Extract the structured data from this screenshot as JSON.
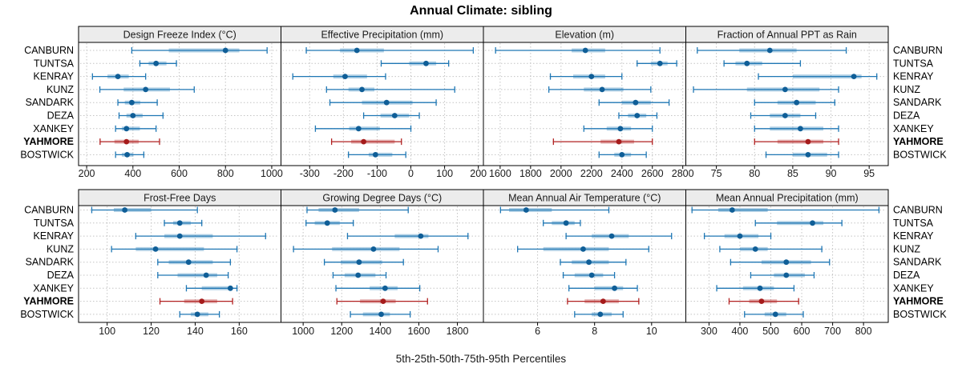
{
  "title": "Annual Climate: sibling",
  "caption": "5th-25th-50th-75th-95th Percentiles",
  "stations": [
    "CANBURN",
    "TUNTSA",
    "KENRAY",
    "KUNZ",
    "SANDARK",
    "DEZA",
    "XANKEY",
    "YAHMORE",
    "BOSTWICK"
  ],
  "highlight_station": "YAHMORE",
  "colors": {
    "blue_line": "#1f77b4",
    "blue_band": "rgba(31,119,180,0.35)",
    "blue_dot": "#0f5e97",
    "red_line": "#b22222",
    "red_band": "rgba(178,34,34,0.35)",
    "red_dot": "#a51b1b",
    "strip_bg": "#ececec",
    "grid": "#c4c4c4",
    "border": "#000000",
    "text": "#1a1a1a"
  },
  "chart_data": {
    "type": "dotplot-percentiles",
    "percentiles": [
      5,
      25,
      50,
      75,
      95
    ],
    "layout": {
      "rows": 2,
      "cols": 4,
      "grid": "dotted",
      "station_axis": "y"
    },
    "panels": [
      {
        "row": 0,
        "col": 0,
        "title": "Design Freeze Index (°C)",
        "xlim": [
          165,
          1040
        ],
        "ticks": [
          200,
          400,
          600,
          800,
          1000
        ],
        "values": [
          [
            395,
            555,
            800,
            860,
            980
          ],
          [
            430,
            468,
            500,
            545,
            588
          ],
          [
            225,
            290,
            335,
            382,
            455
          ],
          [
            257,
            360,
            455,
            560,
            665
          ],
          [
            335,
            365,
            395,
            432,
            505
          ],
          [
            340,
            372,
            400,
            442,
            530
          ],
          [
            325,
            352,
            372,
            430,
            500
          ],
          [
            258,
            320,
            372,
            425,
            515
          ],
          [
            325,
            352,
            375,
            402,
            447
          ]
        ]
      },
      {
        "row": 0,
        "col": 1,
        "title": "Effective Precipitation (mm)",
        "xlim": [
          -385,
          215
        ],
        "ticks": [
          -300,
          -200,
          -100,
          0,
          100,
          200
        ],
        "values": [
          [
            -310,
            -210,
            -160,
            -80,
            185
          ],
          [
            -88,
            -5,
            45,
            75,
            112
          ],
          [
            -350,
            -230,
            -195,
            -130,
            -75
          ],
          [
            -250,
            -185,
            -145,
            -108,
            130
          ],
          [
            -240,
            -145,
            -72,
            5,
            75
          ],
          [
            -140,
            -90,
            -48,
            -5,
            25
          ],
          [
            -283,
            -183,
            -155,
            -92,
            0
          ],
          [
            -235,
            -177,
            -140,
            -48,
            -28
          ],
          [
            -185,
            -125,
            -105,
            -55,
            -15
          ]
        ]
      },
      {
        "row": 0,
        "col": 2,
        "title": "Elevation (m)",
        "xlim": [
          1490,
          2820
        ],
        "ticks": [
          1600,
          1800,
          2000,
          2200,
          2400,
          2600,
          2800
        ],
        "values": [
          [
            1570,
            2070,
            2160,
            2290,
            2650
          ],
          [
            2500,
            2590,
            2650,
            2700,
            2760
          ],
          [
            1930,
            2080,
            2200,
            2290,
            2400
          ],
          [
            1920,
            2150,
            2270,
            2410,
            2590
          ],
          [
            2250,
            2400,
            2490,
            2590,
            2710
          ],
          [
            2380,
            2440,
            2500,
            2560,
            2630
          ],
          [
            2150,
            2300,
            2390,
            2460,
            2600
          ],
          [
            1950,
            2260,
            2380,
            2480,
            2600
          ],
          [
            2250,
            2350,
            2400,
            2460,
            2560
          ]
        ]
      },
      {
        "row": 0,
        "col": 3,
        "title": "Fraction of Annual PPT as Rain",
        "xlim": [
          71,
          97.5
        ],
        "ticks": [
          75,
          80,
          85,
          90,
          95
        ],
        "values": [
          [
            72.5,
            78,
            82,
            85.5,
            92
          ],
          [
            76,
            77.5,
            79,
            81,
            86
          ],
          [
            80.5,
            85,
            93,
            94,
            96
          ],
          [
            72,
            79,
            84,
            88.5,
            91
          ],
          [
            80,
            83,
            85.5,
            88,
            90.5
          ],
          [
            79.5,
            82,
            84,
            86,
            88
          ],
          [
            80,
            82,
            86,
            89,
            91
          ],
          [
            80,
            83,
            87,
            89,
            91
          ],
          [
            81.5,
            85,
            87,
            89.5,
            91
          ]
        ]
      },
      {
        "row": 1,
        "col": 0,
        "title": "Frost-Free Days",
        "xlim": [
          87,
          179
        ],
        "ticks": [
          100,
          120,
          140,
          160
        ],
        "values": [
          [
            93,
            103,
            108,
            120,
            141
          ],
          [
            126,
            130,
            133,
            138,
            143
          ],
          [
            113,
            126,
            133,
            148,
            172
          ],
          [
            102,
            113,
            122,
            144,
            159
          ],
          [
            123,
            128,
            137,
            148,
            156
          ],
          [
            123,
            132,
            145,
            150,
            155
          ],
          [
            136,
            143,
            156,
            157,
            159
          ],
          [
            124,
            135,
            143,
            150,
            157
          ],
          [
            133,
            138,
            141,
            146,
            151
          ]
        ]
      },
      {
        "row": 1,
        "col": 1,
        "title": "Growing Degree Days (°C)",
        "xlim": [
          885,
          1935
        ],
        "ticks": [
          1000,
          1200,
          1400,
          1600,
          1800
        ],
        "values": [
          [
            1020,
            1080,
            1165,
            1290,
            1545
          ],
          [
            1015,
            1060,
            1125,
            1190,
            1260
          ],
          [
            1230,
            1475,
            1610,
            1650,
            1855
          ],
          [
            950,
            1150,
            1365,
            1500,
            1700
          ],
          [
            1110,
            1195,
            1290,
            1410,
            1520
          ],
          [
            1155,
            1215,
            1285,
            1375,
            1430
          ],
          [
            1170,
            1345,
            1425,
            1490,
            1605
          ],
          [
            1175,
            1295,
            1415,
            1480,
            1645
          ],
          [
            1245,
            1310,
            1405,
            1450,
            1555
          ]
        ]
      },
      {
        "row": 1,
        "col": 2,
        "title": "Mean Annual Air Temperature (°C)",
        "xlim": [
          4.1,
          11.2
        ],
        "ticks": [
          6,
          8,
          10
        ],
        "values": [
          [
            4.7,
            5.0,
            5.6,
            6.5,
            8.5
          ],
          [
            6.2,
            6.5,
            7.0,
            7.3,
            7.5
          ],
          [
            7.0,
            7.9,
            8.6,
            9.2,
            10.7
          ],
          [
            5.3,
            6.2,
            7.6,
            8.5,
            9.9
          ],
          [
            6.8,
            7.2,
            7.8,
            8.5,
            9.1
          ],
          [
            6.9,
            7.3,
            7.9,
            8.3,
            8.7
          ],
          [
            7.1,
            8.0,
            8.7,
            9.0,
            9.5
          ],
          [
            7.05,
            7.65,
            8.3,
            8.85,
            9.55
          ],
          [
            7.3,
            7.9,
            8.2,
            8.6,
            9.0
          ]
        ]
      },
      {
        "row": 1,
        "col": 3,
        "title": "Mean Annual Precipitation (mm)",
        "xlim": [
          225,
          880
        ],
        "ticks": [
          300,
          400,
          500,
          600,
          700,
          800
        ],
        "values": [
          [
            245,
            330,
            375,
            490,
            850
          ],
          [
            450,
            520,
            635,
            670,
            730
          ],
          [
            285,
            350,
            400,
            460,
            500
          ],
          [
            335,
            400,
            450,
            490,
            665
          ],
          [
            370,
            470,
            550,
            630,
            690
          ],
          [
            435,
            510,
            550,
            610,
            640
          ],
          [
            325,
            410,
            465,
            510,
            575
          ],
          [
            365,
            430,
            470,
            520,
            590
          ],
          [
            415,
            480,
            515,
            550,
            605
          ]
        ]
      }
    ]
  }
}
